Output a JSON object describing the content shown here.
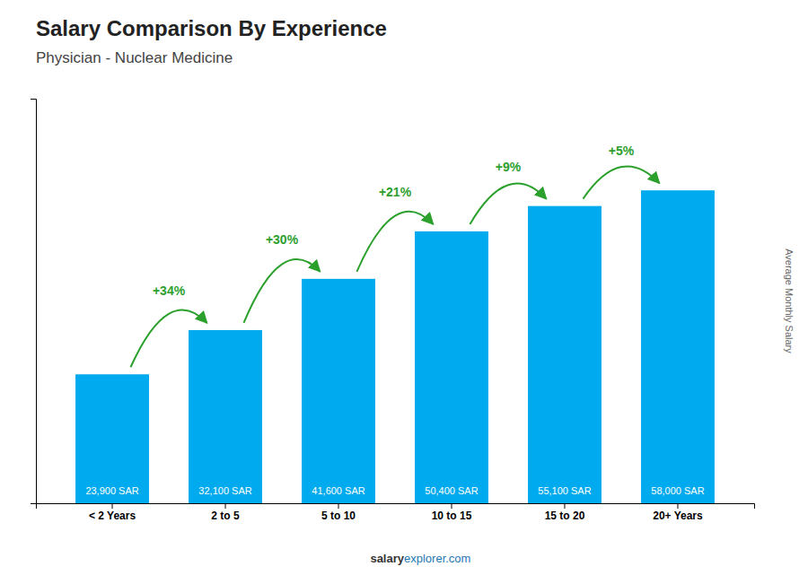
{
  "chart_data": {
    "type": "bar",
    "title": "Salary Comparison By Experience",
    "subtitle": "Physician - Nuclear Medicine",
    "categories": [
      "< 2 Years",
      "2 to 5",
      "5 to 10",
      "10 to 15",
      "15 to 20",
      "20+ Years"
    ],
    "values": [
      23900,
      32100,
      41600,
      50400,
      55100,
      58000
    ],
    "value_labels": [
      "23,900 SAR",
      "32,100 SAR",
      "41,600 SAR",
      "50,400 SAR",
      "55,100 SAR",
      "58,000 SAR"
    ],
    "data_labels": true,
    "annotations": [
      "+34%",
      "+30%",
      "+21%",
      "+9%",
      "+5%"
    ],
    "y_label": "Average Monthly Salary",
    "footer": [
      "salary",
      "explorer.com"
    ],
    "color": "#00aaee",
    "ylim": [
      0,
      75000
    ],
    "tick_labels": "x"
  }
}
